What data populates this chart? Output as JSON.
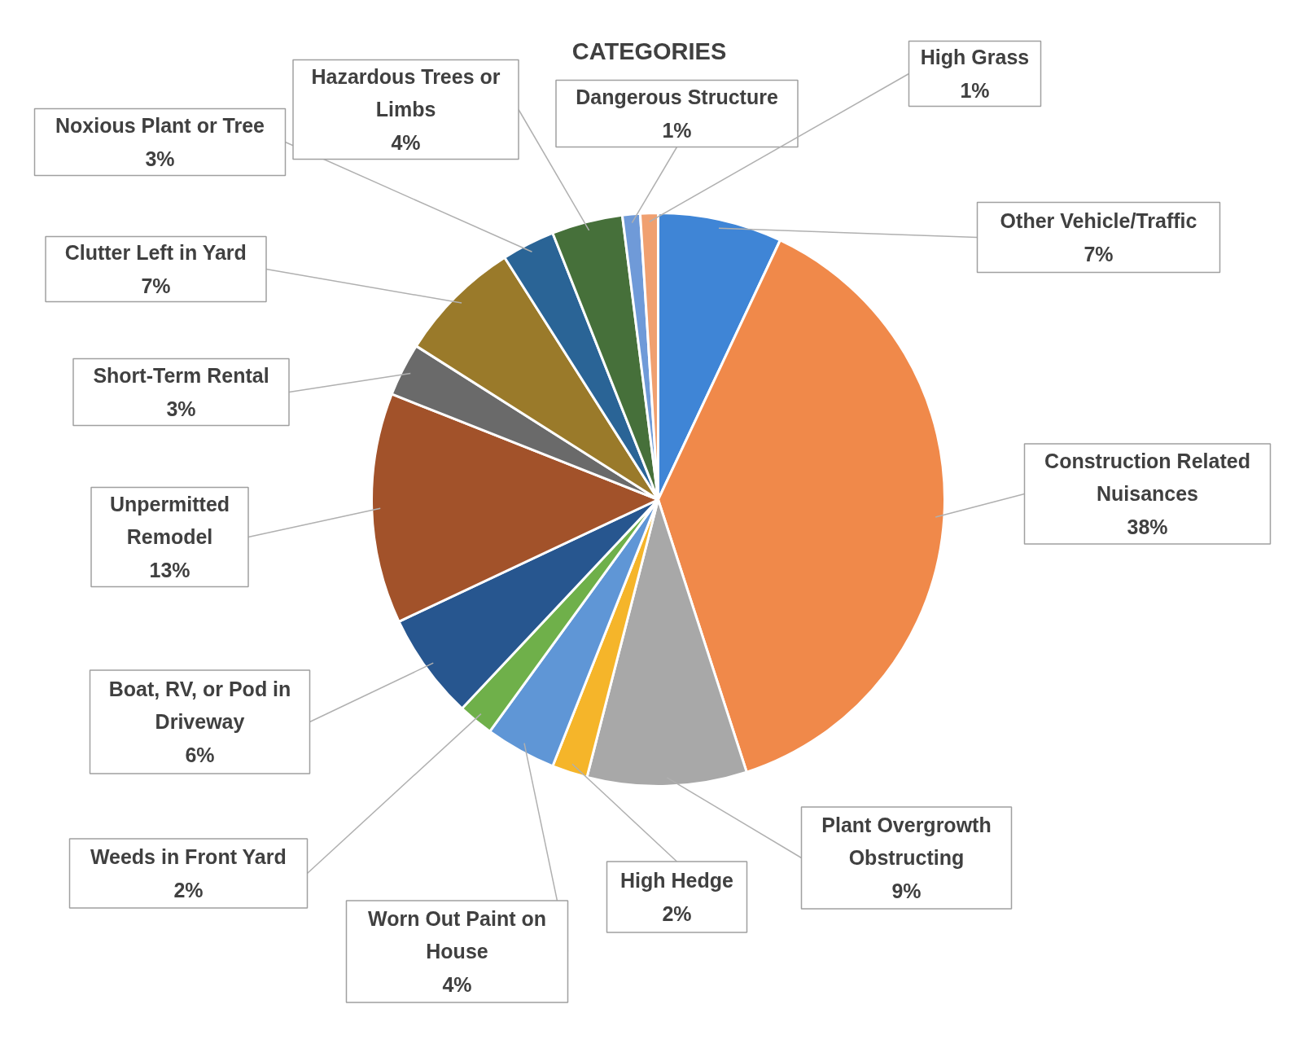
{
  "chart_data": {
    "type": "pie",
    "title": "CATEGORIES",
    "categories": [
      "Other Vehicle/Traffic",
      "Construction Related Nuisances",
      "Plant Overgrowth Obstructing",
      "High Hedge",
      "Worn Out Paint on House",
      "Weeds in Front Yard",
      "Boat, RV, or Pod in Driveway",
      "Unpermitted Remodel",
      "Short-Term Rental",
      "Clutter Left in Yard",
      "Noxious Plant or Tree",
      "Hazardous Trees or Limbs",
      "Dangerous Structure",
      "High Grass"
    ],
    "values": [
      7,
      38,
      9,
      2,
      4,
      2,
      6,
      13,
      3,
      7,
      3,
      4,
      1,
      1
    ],
    "colors": [
      "#3f85d6",
      "#f0894a",
      "#a8a8a8",
      "#f5b52a",
      "#5f96d6",
      "#6fb04a",
      "#27568f",
      "#a2522a",
      "#6a6a6a",
      "#9a7a2a",
      "#2a6496",
      "#46703a",
      "#6f9ad8",
      "#f0a070"
    ],
    "value_labels": [
      "7%",
      "38%",
      "9%",
      "2%",
      "4%",
      "2%",
      "6%",
      "13%",
      "3%",
      "7%",
      "3%",
      "4%",
      "1%",
      "1%"
    ]
  }
}
